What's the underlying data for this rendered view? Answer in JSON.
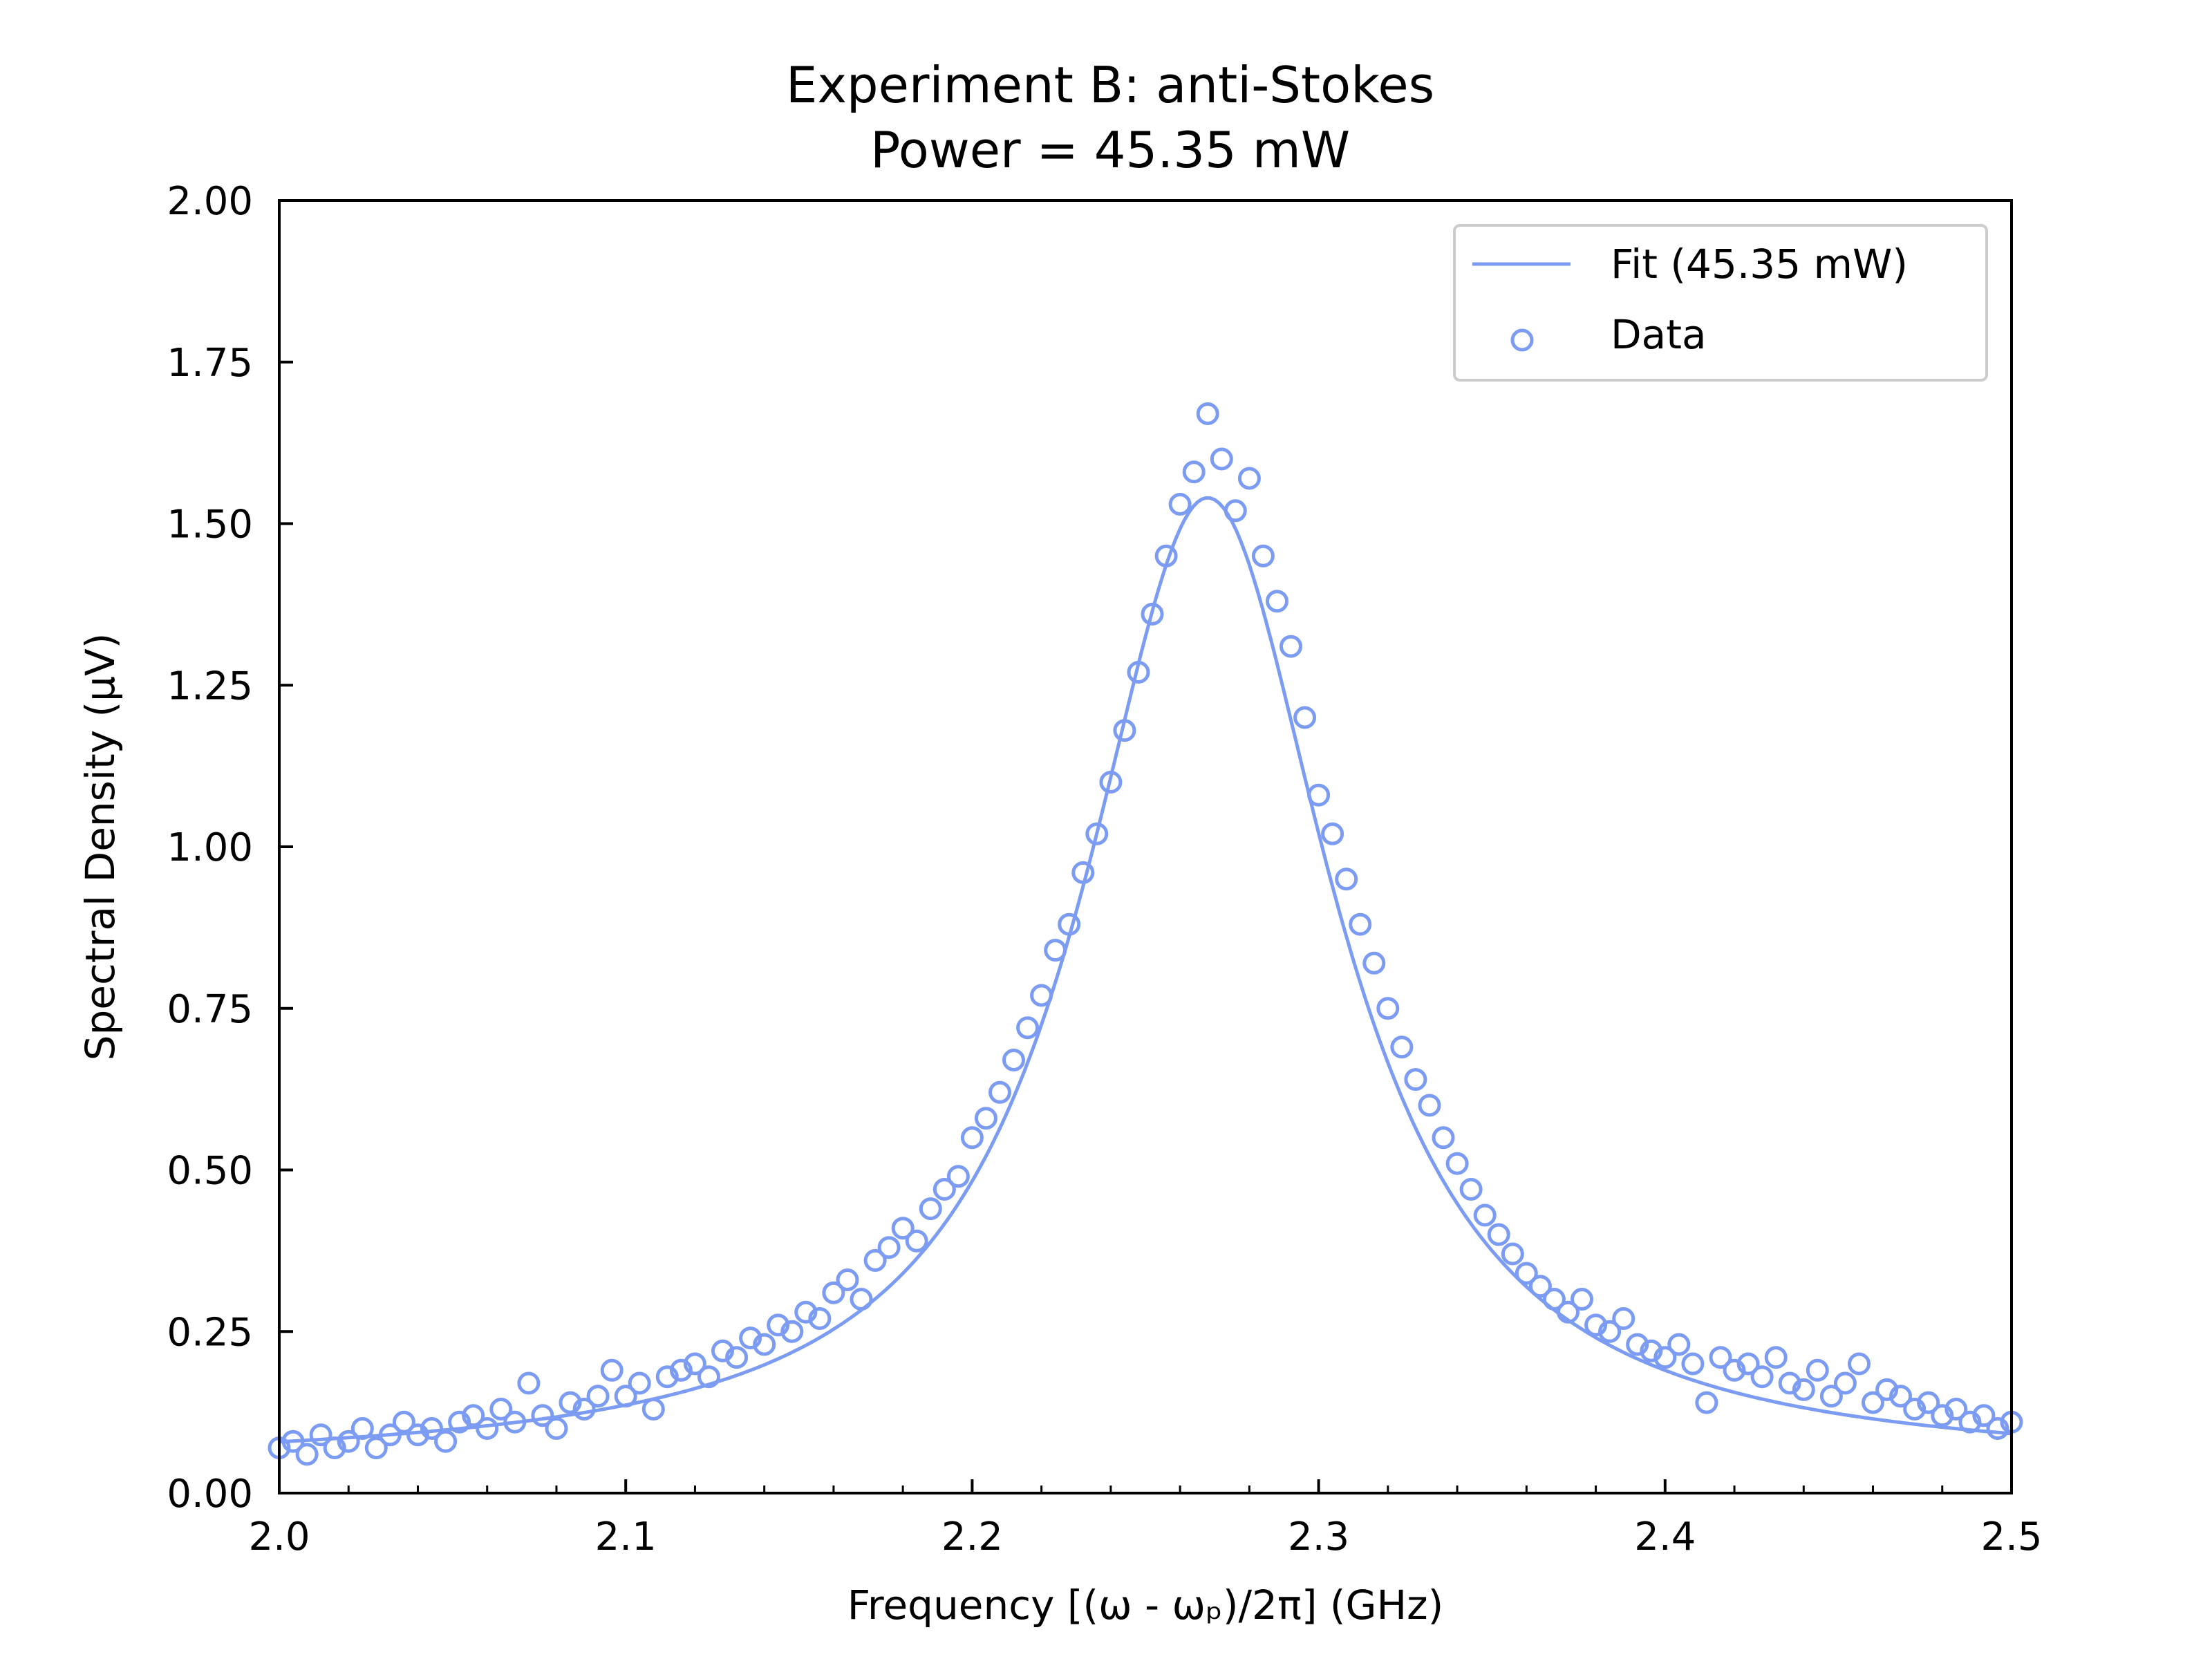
{
  "chart_data": {
    "type": "scatter",
    "title": "Experiment B: anti-Stokes",
    "subtitle": "Power = 45.35 mW",
    "xlabel": "Frequency [(ω - ωₚ)/2π] (GHz)",
    "ylabel": "Spectral Density (μV)",
    "xlim": [
      2.0,
      2.5
    ],
    "ylim": [
      0.0,
      2.0
    ],
    "xticks": [
      "2.0",
      "2.1",
      "2.2",
      "2.3",
      "2.4",
      "2.5"
    ],
    "yticks": [
      "0.00",
      "0.25",
      "0.50",
      "0.75",
      "1.00",
      "1.25",
      "1.50",
      "1.75",
      "2.00"
    ],
    "grid": false,
    "legend_position": "top-right",
    "color": "#7b9cf2",
    "series": [
      {
        "name": "Fit (45.35 mW)",
        "kind": "line",
        "model": "lorentzian",
        "center": 2.268,
        "hwhm": 0.044,
        "amplitude": 1.5,
        "offset": 0.04
      },
      {
        "name": "Data",
        "kind": "scatter",
        "x": [
          2.0,
          2.004,
          2.008,
          2.012,
          2.016,
          2.02,
          2.024,
          2.028,
          2.032,
          2.036,
          2.04,
          2.044,
          2.048,
          2.052,
          2.056,
          2.06,
          2.064,
          2.068,
          2.072,
          2.076,
          2.08,
          2.084,
          2.088,
          2.092,
          2.096,
          2.1,
          2.104,
          2.108,
          2.112,
          2.116,
          2.12,
          2.124,
          2.128,
          2.132,
          2.136,
          2.14,
          2.144,
          2.148,
          2.152,
          2.156,
          2.16,
          2.164,
          2.168,
          2.172,
          2.176,
          2.18,
          2.184,
          2.188,
          2.192,
          2.196,
          2.2,
          2.204,
          2.208,
          2.212,
          2.216,
          2.22,
          2.224,
          2.228,
          2.232,
          2.236,
          2.24,
          2.244,
          2.248,
          2.252,
          2.256,
          2.26,
          2.264,
          2.268,
          2.272,
          2.276,
          2.28,
          2.284,
          2.288,
          2.292,
          2.296,
          2.3,
          2.304,
          2.308,
          2.312,
          2.316,
          2.32,
          2.324,
          2.328,
          2.332,
          2.336,
          2.34,
          2.344,
          2.348,
          2.352,
          2.356,
          2.36,
          2.364,
          2.368,
          2.372,
          2.376,
          2.38,
          2.384,
          2.388,
          2.392,
          2.396,
          2.4,
          2.404,
          2.408,
          2.412,
          2.416,
          2.42,
          2.424,
          2.428,
          2.432,
          2.436,
          2.44,
          2.444,
          2.448,
          2.452,
          2.456,
          2.46,
          2.464,
          2.468,
          2.472,
          2.476,
          2.48,
          2.484,
          2.488,
          2.492,
          2.496,
          2.5
        ],
        "y": [
          0.07,
          0.08,
          0.06,
          0.09,
          0.07,
          0.08,
          0.1,
          0.07,
          0.09,
          0.11,
          0.09,
          0.1,
          0.08,
          0.11,
          0.12,
          0.1,
          0.13,
          0.11,
          0.17,
          0.12,
          0.1,
          0.14,
          0.13,
          0.15,
          0.19,
          0.15,
          0.17,
          0.13,
          0.18,
          0.19,
          0.2,
          0.18,
          0.22,
          0.21,
          0.24,
          0.23,
          0.26,
          0.25,
          0.28,
          0.27,
          0.31,
          0.33,
          0.3,
          0.36,
          0.38,
          0.41,
          0.39,
          0.44,
          0.47,
          0.49,
          0.55,
          0.58,
          0.62,
          0.67,
          0.72,
          0.77,
          0.84,
          0.88,
          0.96,
          1.02,
          1.1,
          1.18,
          1.27,
          1.36,
          1.45,
          1.53,
          1.58,
          1.67,
          1.6,
          1.52,
          1.57,
          1.45,
          1.38,
          1.31,
          1.2,
          1.08,
          1.02,
          0.95,
          0.88,
          0.82,
          0.75,
          0.69,
          0.64,
          0.6,
          0.55,
          0.51,
          0.47,
          0.43,
          0.4,
          0.37,
          0.34,
          0.32,
          0.3,
          0.28,
          0.3,
          0.26,
          0.25,
          0.27,
          0.23,
          0.22,
          0.21,
          0.23,
          0.2,
          0.14,
          0.21,
          0.19,
          0.2,
          0.18,
          0.21,
          0.17,
          0.16,
          0.19,
          0.15,
          0.17,
          0.2,
          0.14,
          0.16,
          0.15,
          0.13,
          0.14,
          0.12,
          0.13,
          0.11,
          0.12,
          0.1,
          0.11
        ]
      }
    ]
  }
}
